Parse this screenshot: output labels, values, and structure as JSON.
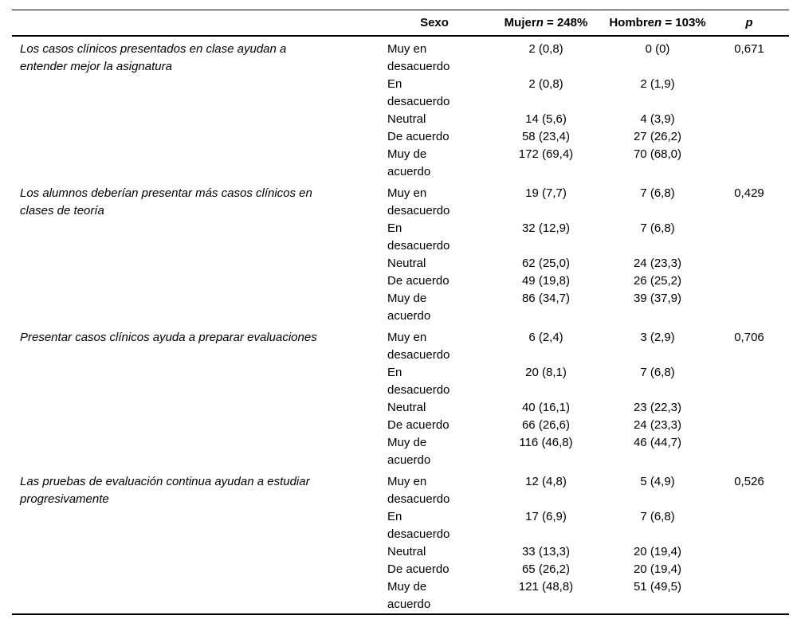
{
  "table": {
    "header": {
      "statement": "",
      "sexo": "Sexo",
      "mujer_label": "Mujer",
      "mujer_n": "n",
      "mujer_rest": " = 248%",
      "hombre_label": "Hombre",
      "hombre_n": "n",
      "hombre_rest": " = 103%",
      "p": "p"
    },
    "blocks": [
      {
        "statement": "Los casos clínicos presentados en clase ayudan a\nentender mejor la asignatura",
        "p": "0,671",
        "rows": [
          {
            "label": "Muy en\ndesacuerdo",
            "mujer": "2 (0,8)",
            "hombre": "0 (0)"
          },
          {
            "label": "En\ndesacuerdo",
            "mujer": "2 (0,8)",
            "hombre": "2 (1,9)"
          },
          {
            "label": "Neutral",
            "mujer": "14 (5,6)",
            "hombre": "4 (3,9)"
          },
          {
            "label": "De acuerdo",
            "mujer": "58 (23,4)",
            "hombre": "27 (26,2)"
          },
          {
            "label": "Muy de\nacuerdo",
            "mujer": "172 (69,4)",
            "hombre": "70 (68,0)"
          }
        ]
      },
      {
        "statement": "Los alumnos deberían presentar más casos clínicos en\nclases de teoría",
        "p": "0,429",
        "rows": [
          {
            "label": "Muy en\ndesacuerdo",
            "mujer": "19 (7,7)",
            "hombre": "7 (6,8)"
          },
          {
            "label": "En\ndesacuerdo",
            "mujer": "32 (12,9)",
            "hombre": "7 (6,8)"
          },
          {
            "label": "Neutral",
            "mujer": "62 (25,0)",
            "hombre": "24 (23,3)"
          },
          {
            "label": "De acuerdo",
            "mujer": "49 (19,8)",
            "hombre": "26 (25,2)"
          },
          {
            "label": "Muy de\nacuerdo",
            "mujer": "86 (34,7)",
            "hombre": "39 (37,9)"
          }
        ]
      },
      {
        "statement": "Presentar casos clínicos ayuda a preparar evaluaciones",
        "p": "0,706",
        "rows": [
          {
            "label": "Muy en\ndesacuerdo",
            "mujer": "6 (2,4)",
            "hombre": "3 (2,9)"
          },
          {
            "label": "En\ndesacuerdo",
            "mujer": "20 (8,1)",
            "hombre": "7 (6,8)"
          },
          {
            "label": "Neutral",
            "mujer": "40 (16,1)",
            "hombre": "23 (22,3)"
          },
          {
            "label": "De acuerdo",
            "mujer": "66 (26,6)",
            "hombre": "24 (23,3)"
          },
          {
            "label": "Muy de\nacuerdo",
            "mujer": "116 (46,8)",
            "hombre": "46 (44,7)"
          }
        ]
      },
      {
        "statement": "Las pruebas de evaluación continua ayudan a estudiar\nprogresivamente",
        "p": "0,526",
        "rows": [
          {
            "label": "Muy en\ndesacuerdo",
            "mujer": "12 (4,8)",
            "hombre": "5 (4,9)"
          },
          {
            "label": "En\ndesacuerdo",
            "mujer": "17 (6,9)",
            "hombre": "7 (6,8)"
          },
          {
            "label": "Neutral",
            "mujer": "33 (13,3)",
            "hombre": "20 (19,4)"
          },
          {
            "label": "De acuerdo",
            "mujer": "65 (26,2)",
            "hombre": "20 (19,4)"
          },
          {
            "label": "Muy de\nacuerdo",
            "mujer": "121 (48,8)",
            "hombre": "51 (49,5)"
          }
        ]
      }
    ]
  }
}
